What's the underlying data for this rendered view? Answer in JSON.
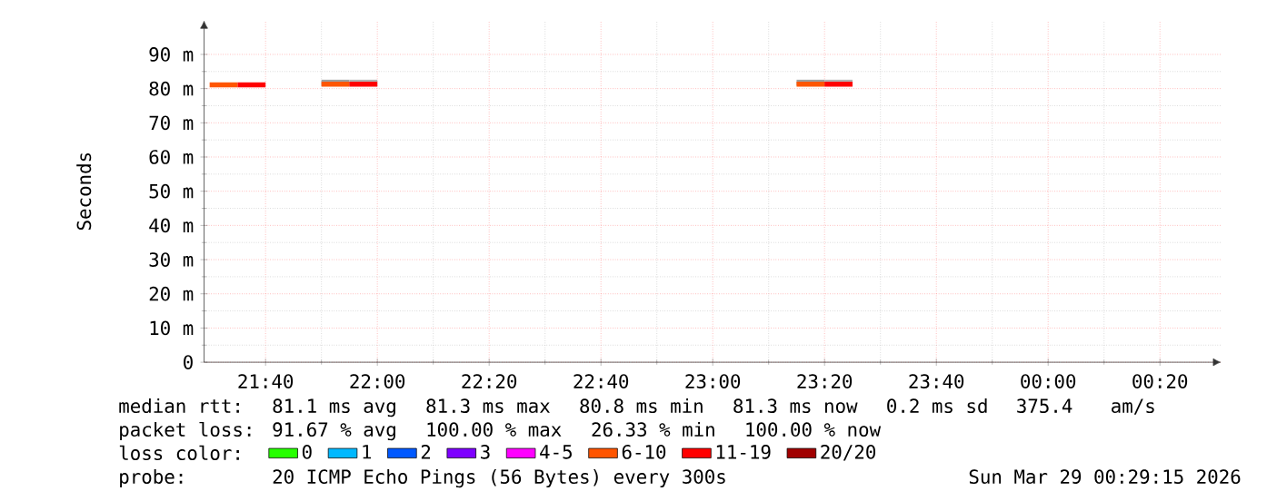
{
  "chart_data": {
    "type": "line",
    "ylabel": "Seconds",
    "legend_title": "loss color:",
    "legend": "bottom",
    "grid": true,
    "xlim": [
      "2026-03-28T21:29",
      "2026-03-29T00:31"
    ],
    "xticks": [
      {
        "value": "2026-03-28T21:40",
        "label": "21:40"
      },
      {
        "value": "2026-03-28T22:00",
        "label": "22:00"
      },
      {
        "value": "2026-03-28T22:20",
        "label": "22:20"
      },
      {
        "value": "2026-03-28T22:40",
        "label": "22:40"
      },
      {
        "value": "2026-03-28T23:00",
        "label": "23:00"
      },
      {
        "value": "2026-03-28T23:20",
        "label": "23:20"
      },
      {
        "value": "2026-03-28T23:40",
        "label": "23:40"
      },
      {
        "value": "2026-03-29T00:00",
        "label": "00:00"
      },
      {
        "value": "2026-03-29T00:20",
        "label": "00:20"
      }
    ],
    "ylim": [
      0,
      100
    ],
    "yticks": [
      0,
      {
        "value": 10,
        "label": "10 m"
      },
      {
        "value": 20,
        "label": "20 m"
      },
      {
        "value": 30,
        "label": "30 m"
      },
      {
        "value": 40,
        "label": "40 m"
      },
      {
        "value": 50,
        "label": "50 m"
      },
      {
        "value": 60,
        "label": "60 m"
      },
      {
        "value": 70,
        "label": "70 m"
      },
      {
        "value": 80,
        "label": "80 m"
      },
      {
        "value": 90,
        "label": "90 m"
      }
    ],
    "series": [
      {
        "name": "0",
        "color": "#26ff00"
      },
      {
        "name": "1",
        "color": "#00b8ff"
      },
      {
        "name": "2",
        "color": "#0059ff"
      },
      {
        "name": "3",
        "color": "#7e00ff"
      },
      {
        "name": "4-5",
        "color": "#ff00ff"
      },
      {
        "name": "6-10",
        "color": "#ff5500",
        "x": [
          "2026-03-28T21:30",
          "2026-03-28T21:35",
          "2026-03-28T21:42",
          "2026-03-28T21:50",
          "2026-03-28T21:55",
          "2026-03-28T22:30",
          "2026-03-28T23:15",
          "2026-03-28T23:20"
        ],
        "values": [
          81.1,
          81.1,
          null,
          81.3,
          81.3,
          null,
          81.3,
          81.3
        ],
        "lower": [
          null,
          null,
          null,
          80.9,
          80.9,
          null,
          80.9,
          80.9
        ],
        "upper": [
          null,
          null,
          null,
          82.6,
          82.6,
          null,
          82.6,
          82.6
        ]
      },
      {
        "name": "11-19",
        "color": "#ff0000",
        "x": [
          "2026-03-28T21:35",
          "2026-03-28T21:40",
          "2026-03-28T21:42",
          "2026-03-28T21:55",
          "2026-03-28T22:00",
          "2026-03-28T22:30",
          "2026-03-28T23:20",
          "2026-03-28T23:25"
        ],
        "values": [
          81.1,
          81.1,
          null,
          81.3,
          81.3,
          null,
          81.3,
          81.3
        ],
        "lower": [
          null,
          null,
          null,
          80.9,
          80.9,
          null,
          80.9,
          80.9
        ],
        "upper": [
          null,
          null,
          null,
          82.6,
          82.6,
          null,
          82.6,
          82.6
        ]
      },
      {
        "name": "20/20",
        "color": "#a10000"
      }
    ],
    "annotations": [
      "median rtt:",
      "81.1 ms avg",
      "81.3 ms max",
      "80.8 ms min",
      "81.3 ms now",
      "0.2 ms sd",
      "375.4",
      "am/s",
      "packet loss:",
      "91.67 % avg",
      "100.00 % max",
      "26.33 % min",
      "100.00 % now",
      "probe:",
      "20 ICMP Echo Pings (56 Bytes) every 300s",
      "Sun Mar 29 00:29:15 2026"
    ]
  }
}
